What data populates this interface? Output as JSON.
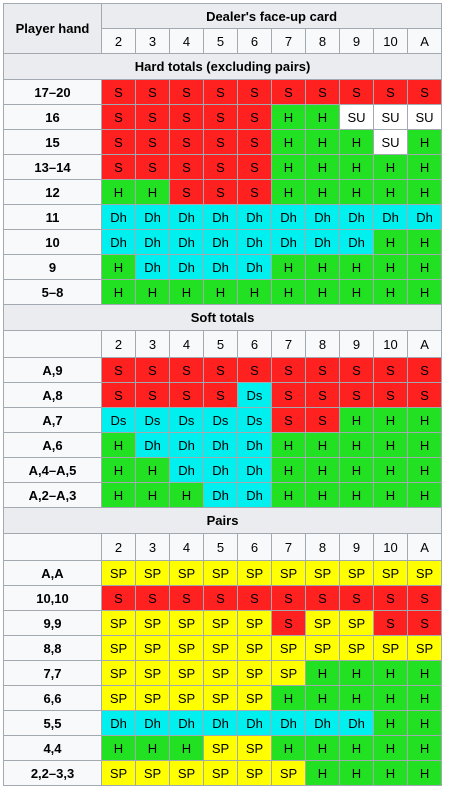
{
  "header": {
    "player_hand_label": "Player hand",
    "dealer_label": "Dealer's face-up card",
    "dealer_cards": [
      "2",
      "3",
      "4",
      "5",
      "6",
      "7",
      "8",
      "9",
      "10",
      "A"
    ]
  },
  "colors": {
    "S": "#ff2020",
    "H": "#22e022",
    "SU": "#ffffff",
    "Dh": "#00f0f0",
    "Ds": "#00f0f0",
    "SP": "#ffff00",
    "header_gray": "#eaecf0",
    "border": "#a2a9b1"
  },
  "sections": [
    {
      "title": "Hard totals (excluding pairs)",
      "show_card_row": false,
      "rows": [
        {
          "hand": "17–20",
          "actions": [
            "S",
            "S",
            "S",
            "S",
            "S",
            "S",
            "S",
            "S",
            "S",
            "S"
          ]
        },
        {
          "hand": "16",
          "actions": [
            "S",
            "S",
            "S",
            "S",
            "S",
            "H",
            "H",
            "SU",
            "SU",
            "SU"
          ]
        },
        {
          "hand": "15",
          "actions": [
            "S",
            "S",
            "S",
            "S",
            "S",
            "H",
            "H",
            "H",
            "SU",
            "H"
          ]
        },
        {
          "hand": "13–14",
          "actions": [
            "S",
            "S",
            "S",
            "S",
            "S",
            "H",
            "H",
            "H",
            "H",
            "H"
          ]
        },
        {
          "hand": "12",
          "actions": [
            "H",
            "H",
            "S",
            "S",
            "S",
            "H",
            "H",
            "H",
            "H",
            "H"
          ]
        },
        {
          "hand": "11",
          "actions": [
            "Dh",
            "Dh",
            "Dh",
            "Dh",
            "Dh",
            "Dh",
            "Dh",
            "Dh",
            "Dh",
            "Dh"
          ]
        },
        {
          "hand": "10",
          "actions": [
            "Dh",
            "Dh",
            "Dh",
            "Dh",
            "Dh",
            "Dh",
            "Dh",
            "Dh",
            "H",
            "H"
          ]
        },
        {
          "hand": "9",
          "actions": [
            "H",
            "Dh",
            "Dh",
            "Dh",
            "Dh",
            "H",
            "H",
            "H",
            "H",
            "H"
          ]
        },
        {
          "hand": "5–8",
          "actions": [
            "H",
            "H",
            "H",
            "H",
            "H",
            "H",
            "H",
            "H",
            "H",
            "H"
          ]
        }
      ]
    },
    {
      "title": "Soft totals",
      "show_card_row": true,
      "rows": [
        {
          "hand": "A,9",
          "actions": [
            "S",
            "S",
            "S",
            "S",
            "S",
            "S",
            "S",
            "S",
            "S",
            "S"
          ]
        },
        {
          "hand": "A,8",
          "actions": [
            "S",
            "S",
            "S",
            "S",
            "Ds",
            "S",
            "S",
            "S",
            "S",
            "S"
          ]
        },
        {
          "hand": "A,7",
          "actions": [
            "Ds",
            "Ds",
            "Ds",
            "Ds",
            "Ds",
            "S",
            "S",
            "H",
            "H",
            "H"
          ]
        },
        {
          "hand": "A,6",
          "actions": [
            "H",
            "Dh",
            "Dh",
            "Dh",
            "Dh",
            "H",
            "H",
            "H",
            "H",
            "H"
          ]
        },
        {
          "hand": "A,4–A,5",
          "actions": [
            "H",
            "H",
            "Dh",
            "Dh",
            "Dh",
            "H",
            "H",
            "H",
            "H",
            "H"
          ]
        },
        {
          "hand": "A,2–A,3",
          "actions": [
            "H",
            "H",
            "H",
            "Dh",
            "Dh",
            "H",
            "H",
            "H",
            "H",
            "H"
          ]
        }
      ]
    },
    {
      "title": "Pairs",
      "show_card_row": true,
      "rows": [
        {
          "hand": "A,A",
          "actions": [
            "SP",
            "SP",
            "SP",
            "SP",
            "SP",
            "SP",
            "SP",
            "SP",
            "SP",
            "SP"
          ]
        },
        {
          "hand": "10,10",
          "actions": [
            "S",
            "S",
            "S",
            "S",
            "S",
            "S",
            "S",
            "S",
            "S",
            "S"
          ]
        },
        {
          "hand": "9,9",
          "actions": [
            "SP",
            "SP",
            "SP",
            "SP",
            "SP",
            "S",
            "SP",
            "SP",
            "S",
            "S"
          ]
        },
        {
          "hand": "8,8",
          "actions": [
            "SP",
            "SP",
            "SP",
            "SP",
            "SP",
            "SP",
            "SP",
            "SP",
            "SP",
            "SP"
          ]
        },
        {
          "hand": "7,7",
          "actions": [
            "SP",
            "SP",
            "SP",
            "SP",
            "SP",
            "SP",
            "H",
            "H",
            "H",
            "H"
          ]
        },
        {
          "hand": "6,6",
          "actions": [
            "SP",
            "SP",
            "SP",
            "SP",
            "SP",
            "H",
            "H",
            "H",
            "H",
            "H"
          ]
        },
        {
          "hand": "5,5",
          "actions": [
            "Dh",
            "Dh",
            "Dh",
            "Dh",
            "Dh",
            "Dh",
            "Dh",
            "Dh",
            "H",
            "H"
          ]
        },
        {
          "hand": "4,4",
          "actions": [
            "H",
            "H",
            "H",
            "SP",
            "SP",
            "H",
            "H",
            "H",
            "H",
            "H"
          ]
        },
        {
          "hand": "2,2–3,3",
          "actions": [
            "SP",
            "SP",
            "SP",
            "SP",
            "SP",
            "SP",
            "H",
            "H",
            "H",
            "H"
          ]
        }
      ]
    }
  ]
}
